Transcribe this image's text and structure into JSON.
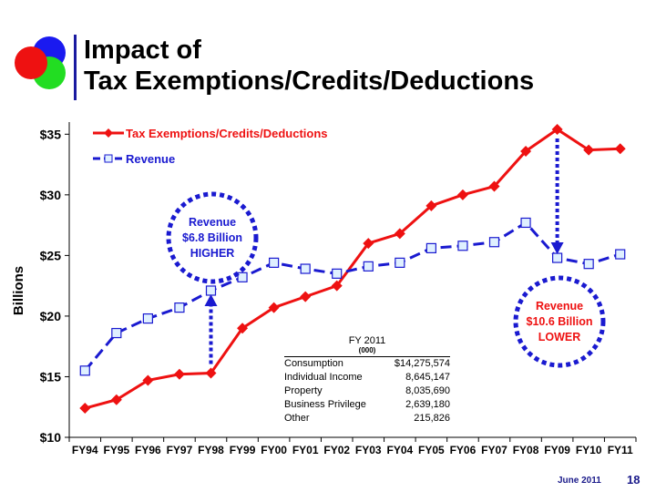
{
  "slide": {
    "title_line1": "Impact of",
    "title_line2": "Tax Exemptions/Credits/Deductions",
    "footer_date": "June 2011",
    "page_number": "18",
    "colors": {
      "title_bar": "#1a1aa0",
      "logo_blue": "#1a1af0",
      "logo_red": "#ee1111",
      "logo_green": "#22dd22"
    }
  },
  "chart_data": {
    "type": "line",
    "ylabel": "Billions",
    "ylim": [
      10,
      36
    ],
    "yticks": [
      10,
      15,
      20,
      25,
      30,
      35
    ],
    "ytick_labels": [
      "$10",
      "$15",
      "$20",
      "$25",
      "$30",
      "$35"
    ],
    "categories": [
      "FY94",
      "FY95",
      "FY96",
      "FY97",
      "FY98",
      "FY99",
      "FY00",
      "FY01",
      "FY02",
      "FY03",
      "FY04",
      "FY05",
      "FY06",
      "FY07",
      "FY08",
      "FY09",
      "FY10",
      "FY11"
    ],
    "legend_position": "top-left",
    "grid": false,
    "series": [
      {
        "name": "Tax Exemptions/Credits/Deductions",
        "color": "#ee1111",
        "marker": "diamond",
        "line_style": "solid",
        "values": [
          12.4,
          13.1,
          14.7,
          15.2,
          15.3,
          19.0,
          20.7,
          21.6,
          22.5,
          26.0,
          26.8,
          29.1,
          30.0,
          30.7,
          33.6,
          35.4,
          33.7,
          33.8
        ]
      },
      {
        "name": "Revenue",
        "color": "#1a1ad0",
        "marker": "square",
        "line_style": "dashed",
        "values": [
          15.5,
          18.6,
          19.8,
          20.7,
          22.1,
          23.2,
          24.4,
          23.9,
          23.5,
          24.1,
          24.4,
          25.6,
          25.8,
          26.1,
          27.7,
          24.8,
          24.3,
          25.1
        ]
      }
    ],
    "annotations": [
      {
        "id": "higher",
        "lines": [
          "Revenue",
          "$6.8 Billion",
          "HIGHER"
        ],
        "text_color": "#1a1ad0",
        "ring_color": "#1a1ad0",
        "arrow_category": "FY98",
        "arrow_from": 15.3,
        "arrow_to": 22.1
      },
      {
        "id": "lower",
        "lines": [
          "Revenue",
          "$10.6 Billion",
          "LOWER"
        ],
        "text_color": "#ee1111",
        "ring_color": "#1a1ad0",
        "arrow_category": "FY09",
        "arrow_from": 35.4,
        "arrow_to": 24.8
      }
    ],
    "table": {
      "title": "FY 2011",
      "unit": "(000)",
      "rows": [
        {
          "label": "Consumption",
          "value": "$14,275,574"
        },
        {
          "label": "Individual Income",
          "value": "8,645,147"
        },
        {
          "label": "Property",
          "value": "8,035,690"
        },
        {
          "label": "Business Privilege",
          "value": "2,639,180"
        },
        {
          "label": "Other",
          "value": "215,826"
        }
      ]
    }
  }
}
